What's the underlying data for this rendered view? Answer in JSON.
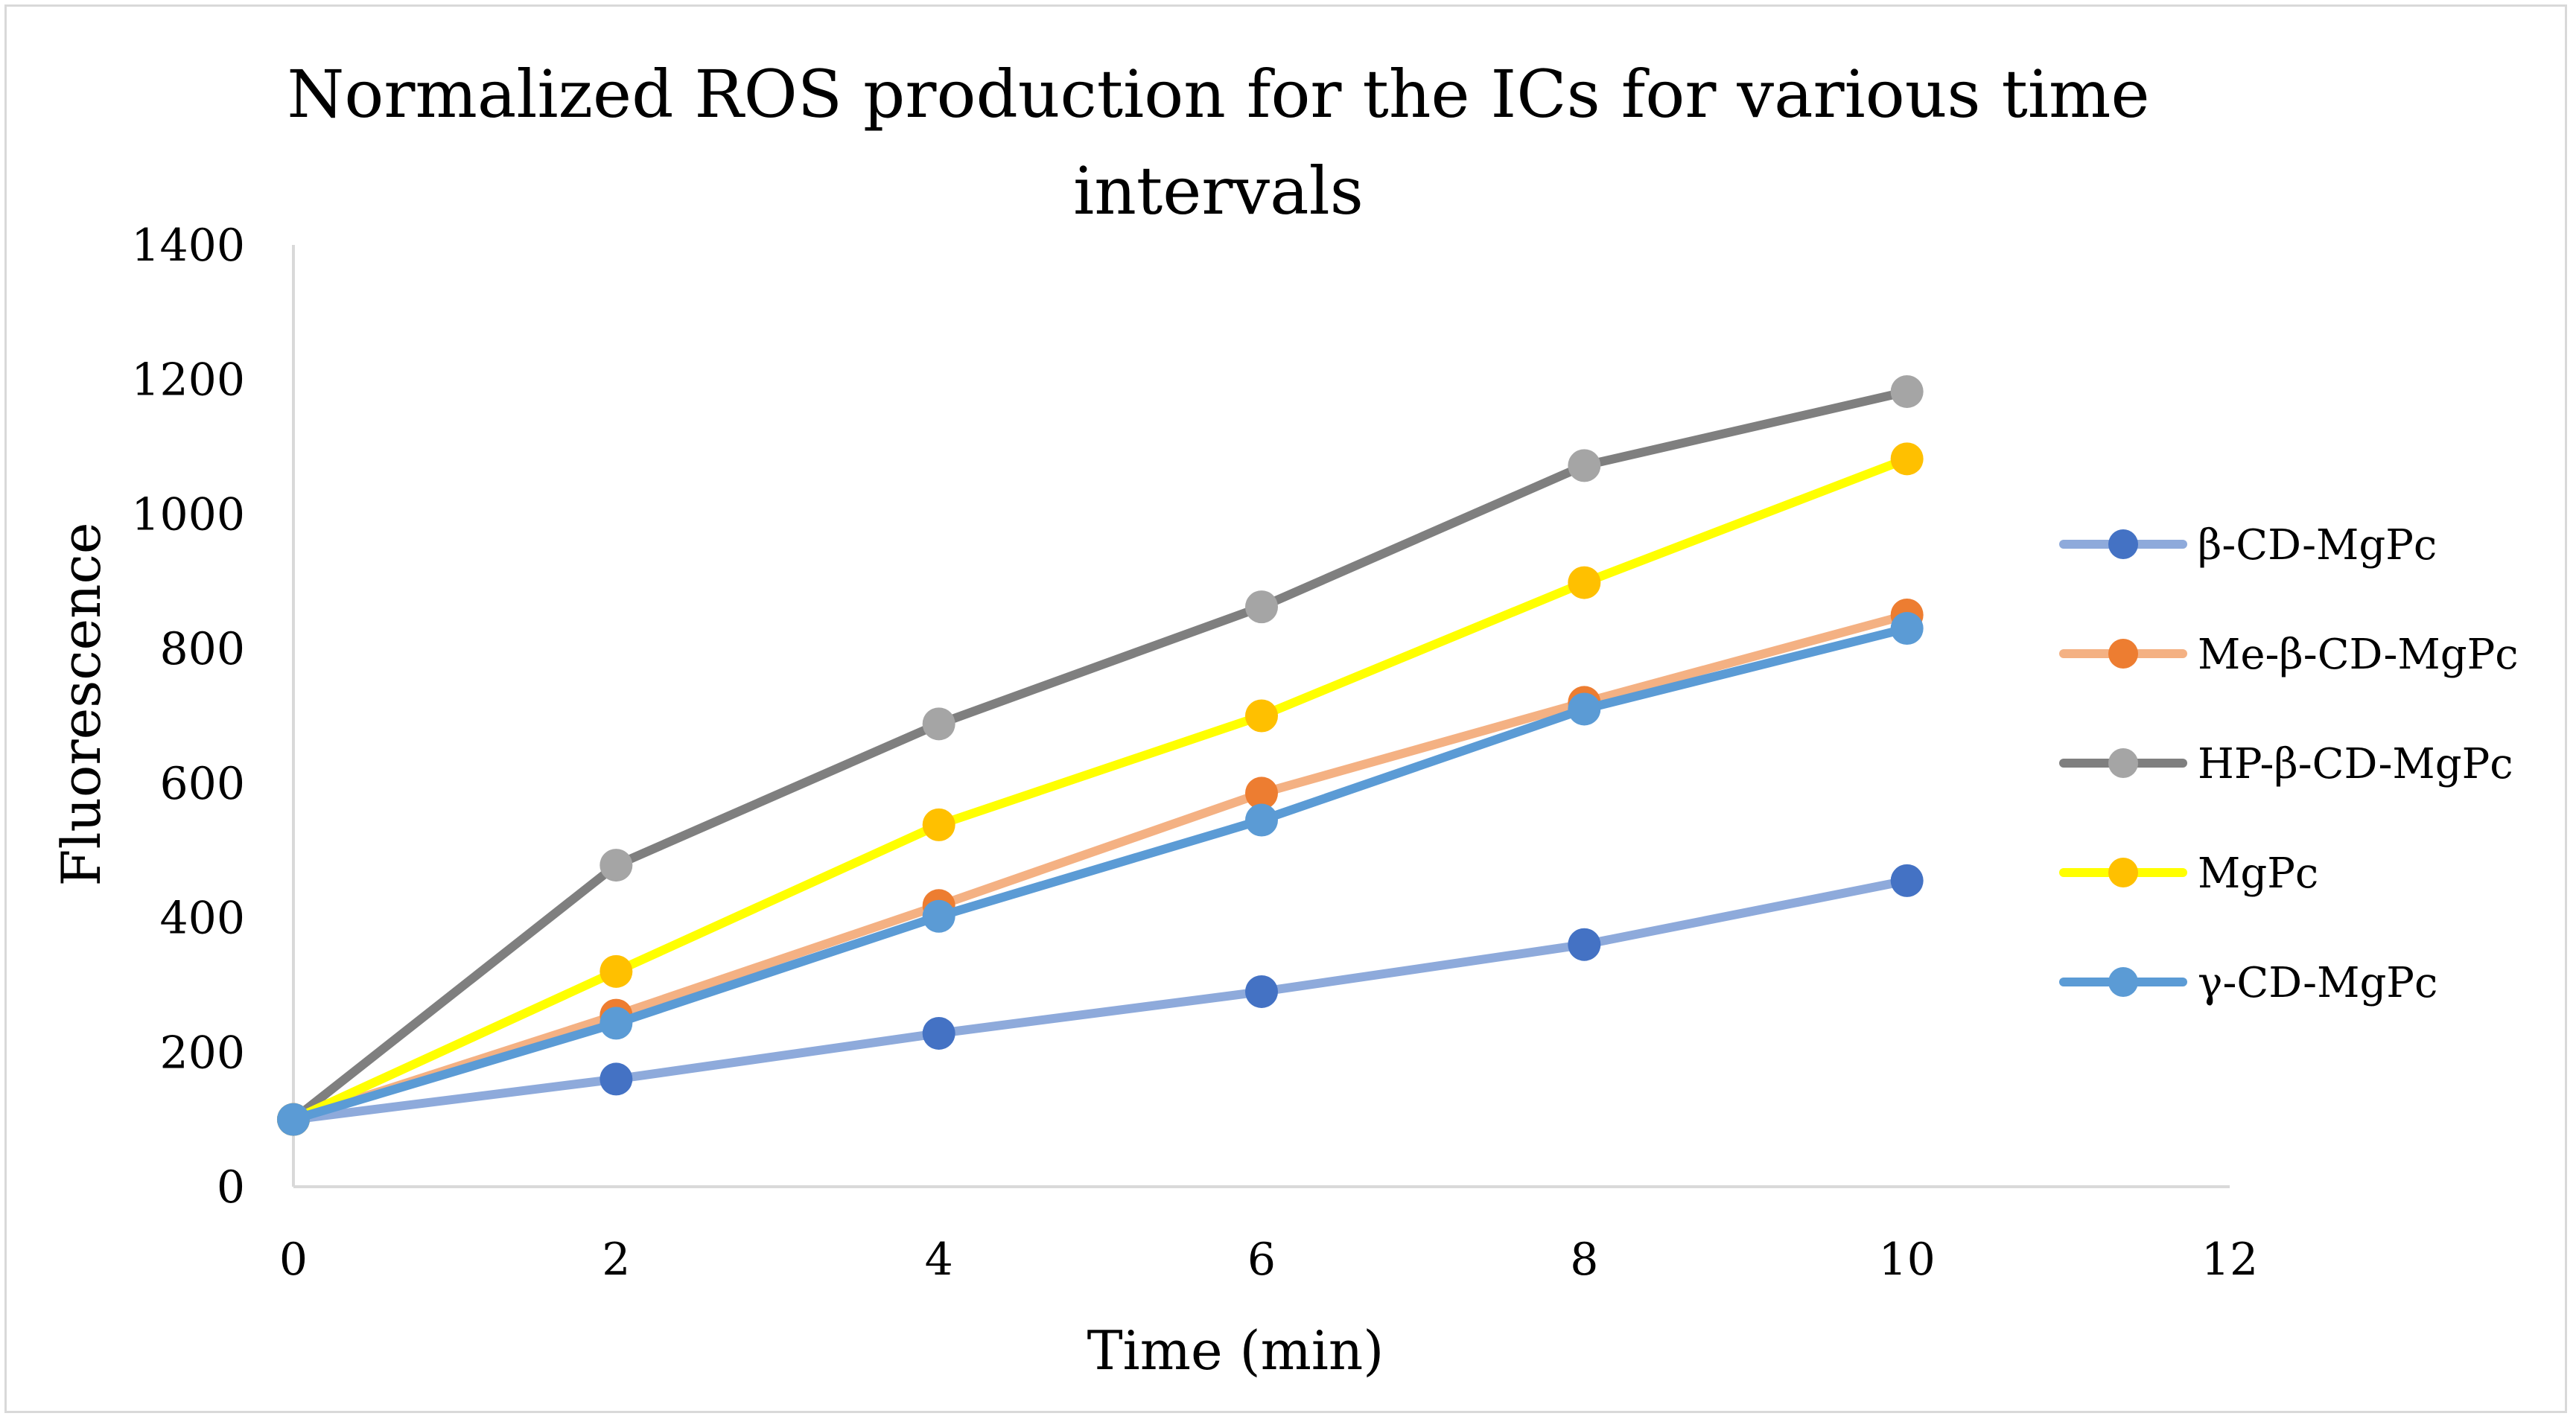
{
  "chart_data": {
    "type": "line",
    "title_lines": [
      "Normalized ROS production for the ICs for various time",
      "intervals"
    ],
    "xlabel": "Time (min)",
    "ylabel": "Fluorescence",
    "xlim": [
      0,
      12
    ],
    "ylim": [
      0,
      1400
    ],
    "x_ticks": [
      "0",
      "2",
      "4",
      "6",
      "8",
      "10",
      "12"
    ],
    "y_ticks": [
      "0",
      "200",
      "400",
      "600",
      "800",
      "1000",
      "1200",
      "1400"
    ],
    "grid": false,
    "legend_position": "right",
    "x": [
      0,
      2,
      4,
      6,
      8,
      10
    ],
    "series": [
      {
        "name": "β-CD-MgPc",
        "line_color": "#8eaadb",
        "marker_color": "#4472c4",
        "values": [
          100,
          160,
          228,
          290,
          360,
          455
        ]
      },
      {
        "name": "Me-β-CD-MgPc",
        "line_color": "#f4b183",
        "marker_color": "#ed7d31",
        "values": [
          100,
          255,
          418,
          585,
          720,
          850
        ]
      },
      {
        "name": "HP-β-CD-MgPc",
        "line_color": "#7f7f7f",
        "marker_color": "#a5a5a5",
        "values": [
          100,
          478,
          688,
          862,
          1072,
          1182
        ]
      },
      {
        "name": "MgPc",
        "line_color": "#ffff00",
        "marker_color": "#ffc000",
        "values": [
          100,
          320,
          538,
          700,
          898,
          1082
        ]
      },
      {
        "name": "γ-CD-MgPc",
        "line_color": "#5b9bd5",
        "marker_color": "#5b9bd5",
        "values": [
          100,
          243,
          402,
          545,
          710,
          830
        ]
      }
    ]
  }
}
